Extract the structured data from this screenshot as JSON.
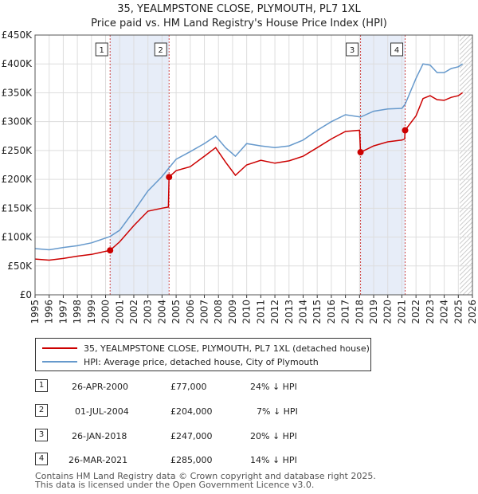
{
  "chart_data": {
    "type": "line",
    "title": "35, YEALMPSTONE CLOSE, PLYMOUTH, PL7 1XL",
    "subtitle": "Price paid vs. HM Land Registry's House Price Index (HPI)",
    "xlabel": "",
    "ylabel": "",
    "xlim": [
      1995,
      2026
    ],
    "ylim": [
      0,
      450000
    ],
    "x_ticks": [
      "1995",
      "1996",
      "1997",
      "1998",
      "1999",
      "2000",
      "2001",
      "2002",
      "2003",
      "2004",
      "2005",
      "2006",
      "2007",
      "2008",
      "2009",
      "2010",
      "2011",
      "2012",
      "2013",
      "2014",
      "2015",
      "2016",
      "2017",
      "2018",
      "2019",
      "2020",
      "2021",
      "2022",
      "2023",
      "2024",
      "2025",
      "2026"
    ],
    "y_ticks": [
      {
        "value": 0,
        "label": "£0"
      },
      {
        "value": 50000,
        "label": "£50K"
      },
      {
        "value": 100000,
        "label": "£100K"
      },
      {
        "value": 150000,
        "label": "£150K"
      },
      {
        "value": 200000,
        "label": "£200K"
      },
      {
        "value": 250000,
        "label": "£250K"
      },
      {
        "value": 300000,
        "label": "£300K"
      },
      {
        "value": 350000,
        "label": "£350K"
      },
      {
        "value": 400000,
        "label": "£400K"
      },
      {
        "value": 450000,
        "label": "£450K"
      }
    ],
    "shaded_periods": [
      [
        2000.32,
        2004.5
      ],
      [
        2018.07,
        2021.23
      ]
    ],
    "forecast_start": 2025.1,
    "series": [
      {
        "name": "35, YEALMPSTONE CLOSE, PLYMOUTH, PL7 1XL (detached house)",
        "color": "#cc0000",
        "x": [
          1995.0,
          1996.0,
          1997.0,
          1998.0,
          1999.0,
          2000.32,
          2001.0,
          2002.0,
          2003.0,
          2004.0,
          2004.45,
          2004.5,
          2005.0,
          2006.0,
          2007.0,
          2007.8,
          2008.5,
          2009.2,
          2010.0,
          2011.0,
          2012.0,
          2013.0,
          2014.0,
          2015.0,
          2016.0,
          2017.0,
          2018.0,
          2018.07,
          2018.5,
          2019.0,
          2020.0,
          2021.0,
          2021.2,
          2021.23,
          2022.0,
          2022.5,
          2023.0,
          2023.5,
          2024.0,
          2024.5,
          2025.0,
          2025.3
        ],
        "values": [
          62000,
          60000,
          63000,
          67000,
          70000,
          77000,
          92000,
          120000,
          145000,
          150000,
          152000,
          204000,
          215000,
          222000,
          240000,
          255000,
          230000,
          207000,
          225000,
          233000,
          228000,
          232000,
          240000,
          255000,
          270000,
          283000,
          285000,
          247000,
          252000,
          258000,
          265000,
          268000,
          270000,
          285000,
          310000,
          340000,
          345000,
          338000,
          337000,
          342000,
          345000,
          350000
        ]
      },
      {
        "name": "HPI: Average price, detached house, City of Plymouth",
        "color": "#6699cc",
        "x": [
          1995.0,
          1996.0,
          1997.0,
          1998.0,
          1999.0,
          2000.32,
          2001.0,
          2002.0,
          2003.0,
          2004.0,
          2004.5,
          2005.0,
          2006.0,
          2007.0,
          2007.8,
          2008.5,
          2009.2,
          2010.0,
          2011.0,
          2012.0,
          2013.0,
          2014.0,
          2015.0,
          2016.0,
          2017.0,
          2018.07,
          2019.0,
          2020.0,
          2021.0,
          2021.23,
          2022.0,
          2022.5,
          2023.0,
          2023.5,
          2024.0,
          2024.5,
          2025.0,
          2025.3
        ],
        "values": [
          80000,
          78000,
          82000,
          85000,
          90000,
          101000,
          112000,
          145000,
          180000,
          205000,
          220000,
          235000,
          248000,
          262000,
          275000,
          255000,
          240000,
          262000,
          258000,
          255000,
          258000,
          268000,
          285000,
          300000,
          312000,
          308000,
          318000,
          322000,
          323000,
          330000,
          375000,
          400000,
          398000,
          385000,
          385000,
          392000,
          395000,
          400000
        ]
      }
    ],
    "markers": [
      {
        "id": "1",
        "x": 2000.32,
        "y": 77000
      },
      {
        "id": "2",
        "x": 2004.5,
        "y": 204000
      },
      {
        "id": "3",
        "x": 2018.07,
        "y": 247000
      },
      {
        "id": "4",
        "x": 2021.23,
        "y": 285000
      }
    ]
  },
  "legend": {
    "red_label": "35, YEALMPSTONE CLOSE, PLYMOUTH, PL7 1XL (detached house)",
    "blue_label": "HPI: Average price, detached house, City of Plymouth"
  },
  "transactions": [
    {
      "id": "1",
      "date": "26-APR-2000",
      "price": "£77,000",
      "hpi": "24% ↓ HPI"
    },
    {
      "id": "2",
      "date": "01-JUL-2004",
      "price": "£204,000",
      "hpi": "7% ↓ HPI"
    },
    {
      "id": "3",
      "date": "26-JAN-2018",
      "price": "£247,000",
      "hpi": "20% ↓ HPI"
    },
    {
      "id": "4",
      "date": "26-MAR-2021",
      "price": "£285,000",
      "hpi": "14% ↓ HPI"
    }
  ],
  "footer": {
    "line1": "Contains HM Land Registry data © Crown copyright and database right 2025.",
    "line2": "This data is licensed under the Open Government Licence v3.0."
  },
  "colors": {
    "red": "#cc0000",
    "blue": "#6699cc",
    "shade": "#dde6f5"
  }
}
